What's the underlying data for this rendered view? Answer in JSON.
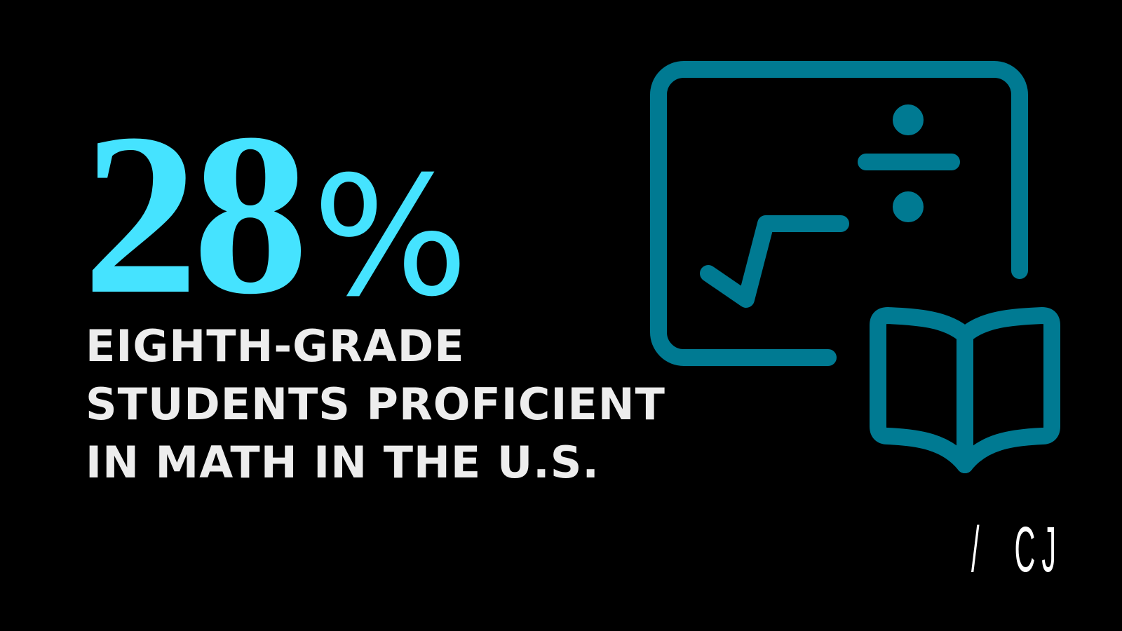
{
  "stat": {
    "number": "28",
    "unit": "%"
  },
  "description": {
    "lines": [
      "EIGHTH-GRADE",
      "STUDENTS PROFICIENT",
      "IN MATH IN THE U.S."
    ]
  },
  "logo": {
    "text": "/  CJ"
  },
  "icons": [
    "chalkboard-math-icon",
    "open-book-icon"
  ],
  "colors": {
    "background": "#000000",
    "stat": "#45e3ff",
    "text": "#ededed",
    "icon": "#007a92",
    "logo": "#ffffff"
  }
}
